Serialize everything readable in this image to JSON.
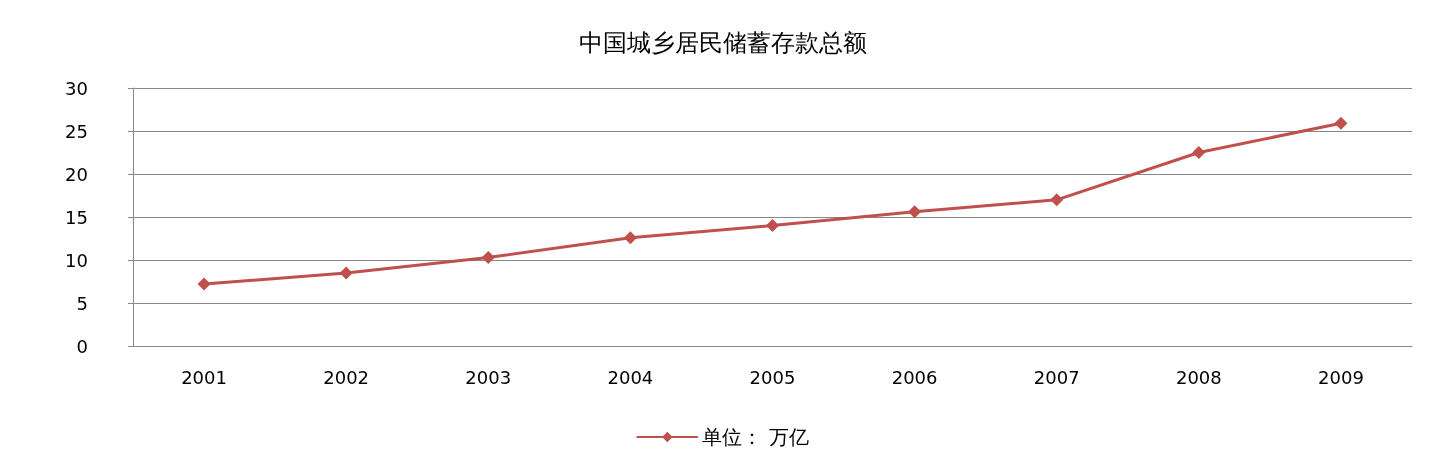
{
  "chart_data": {
    "type": "line",
    "title": "中国城乡居民储蓄存款总额",
    "categories": [
      "2001",
      "2002",
      "2003",
      "2004",
      "2005",
      "2006",
      "2007",
      "2008",
      "2009"
    ],
    "series": [
      {
        "name": "单位： 万亿",
        "color": "#c0504d",
        "values": [
          7.2,
          8.5,
          10.3,
          12.6,
          14.0,
          15.6,
          17.0,
          22.5,
          25.9
        ]
      }
    ],
    "ylim": [
      0,
      30
    ],
    "yticks": [
      0,
      5,
      10,
      15,
      20,
      25,
      30
    ],
    "grid": "y",
    "legend": "bottom",
    "marker": "diamond",
    "line_style": "solid"
  }
}
